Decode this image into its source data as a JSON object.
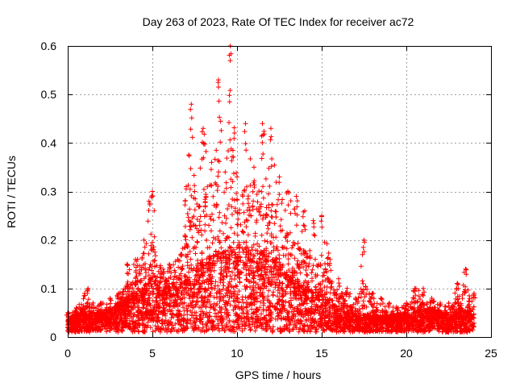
{
  "chart_data": {
    "type": "scatter",
    "title": "Day 263 of 2023, Rate Of TEC Index for receiver ac72",
    "xlabel": "GPS time / hours",
    "ylabel": "ROTI / TECUs",
    "xlim": [
      0,
      25
    ],
    "ylim": [
      0,
      0.6
    ],
    "xticks": [
      "0",
      "5",
      "10",
      "15",
      "20",
      "25"
    ],
    "yticks": [
      "0",
      "0.1",
      "0.2",
      "0.3",
      "0.4",
      "0.5",
      "0.6"
    ],
    "grid": true,
    "marker": "plus",
    "color": "#ff0000",
    "envelope": {
      "x": [
        0,
        0.5,
        1,
        1.2,
        1.5,
        2,
        2.5,
        3,
        3.5,
        4,
        4.5,
        4.8,
        5,
        5.5,
        6,
        6.5,
        7,
        7.3,
        7.5,
        8,
        8.5,
        8.9,
        9.3,
        9.6,
        10,
        10.5,
        11,
        11.5,
        12,
        12.5,
        13,
        13.5,
        14,
        14.5,
        15,
        15.5,
        16,
        16.5,
        17,
        17.5,
        18,
        18.5,
        19,
        19.5,
        20,
        20.5,
        21,
        21.5,
        22,
        22.5,
        23,
        23.5,
        24
      ],
      "upper": [
        0.05,
        0.06,
        0.09,
        0.1,
        0.07,
        0.07,
        0.08,
        0.09,
        0.15,
        0.16,
        0.2,
        0.28,
        0.3,
        0.14,
        0.15,
        0.16,
        0.31,
        0.48,
        0.3,
        0.43,
        0.36,
        0.53,
        0.34,
        0.6,
        0.33,
        0.44,
        0.35,
        0.44,
        0.43,
        0.33,
        0.3,
        0.29,
        0.26,
        0.24,
        0.25,
        0.16,
        0.12,
        0.1,
        0.08,
        0.2,
        0.09,
        0.08,
        0.07,
        0.06,
        0.07,
        0.1,
        0.1,
        0.08,
        0.07,
        0.07,
        0.11,
        0.14,
        0.09
      ],
      "typical": [
        0.025,
        0.03,
        0.035,
        0.035,
        0.03,
        0.035,
        0.04,
        0.05,
        0.06,
        0.07,
        0.08,
        0.09,
        0.1,
        0.07,
        0.08,
        0.09,
        0.1,
        0.13,
        0.11,
        0.13,
        0.13,
        0.15,
        0.14,
        0.15,
        0.13,
        0.15,
        0.13,
        0.14,
        0.13,
        0.12,
        0.1,
        0.09,
        0.08,
        0.07,
        0.07,
        0.05,
        0.04,
        0.035,
        0.03,
        0.03,
        0.03,
        0.03,
        0.03,
        0.03,
        0.03,
        0.035,
        0.04,
        0.04,
        0.035,
        0.03,
        0.035,
        0.04,
        0.035
      ]
    }
  }
}
